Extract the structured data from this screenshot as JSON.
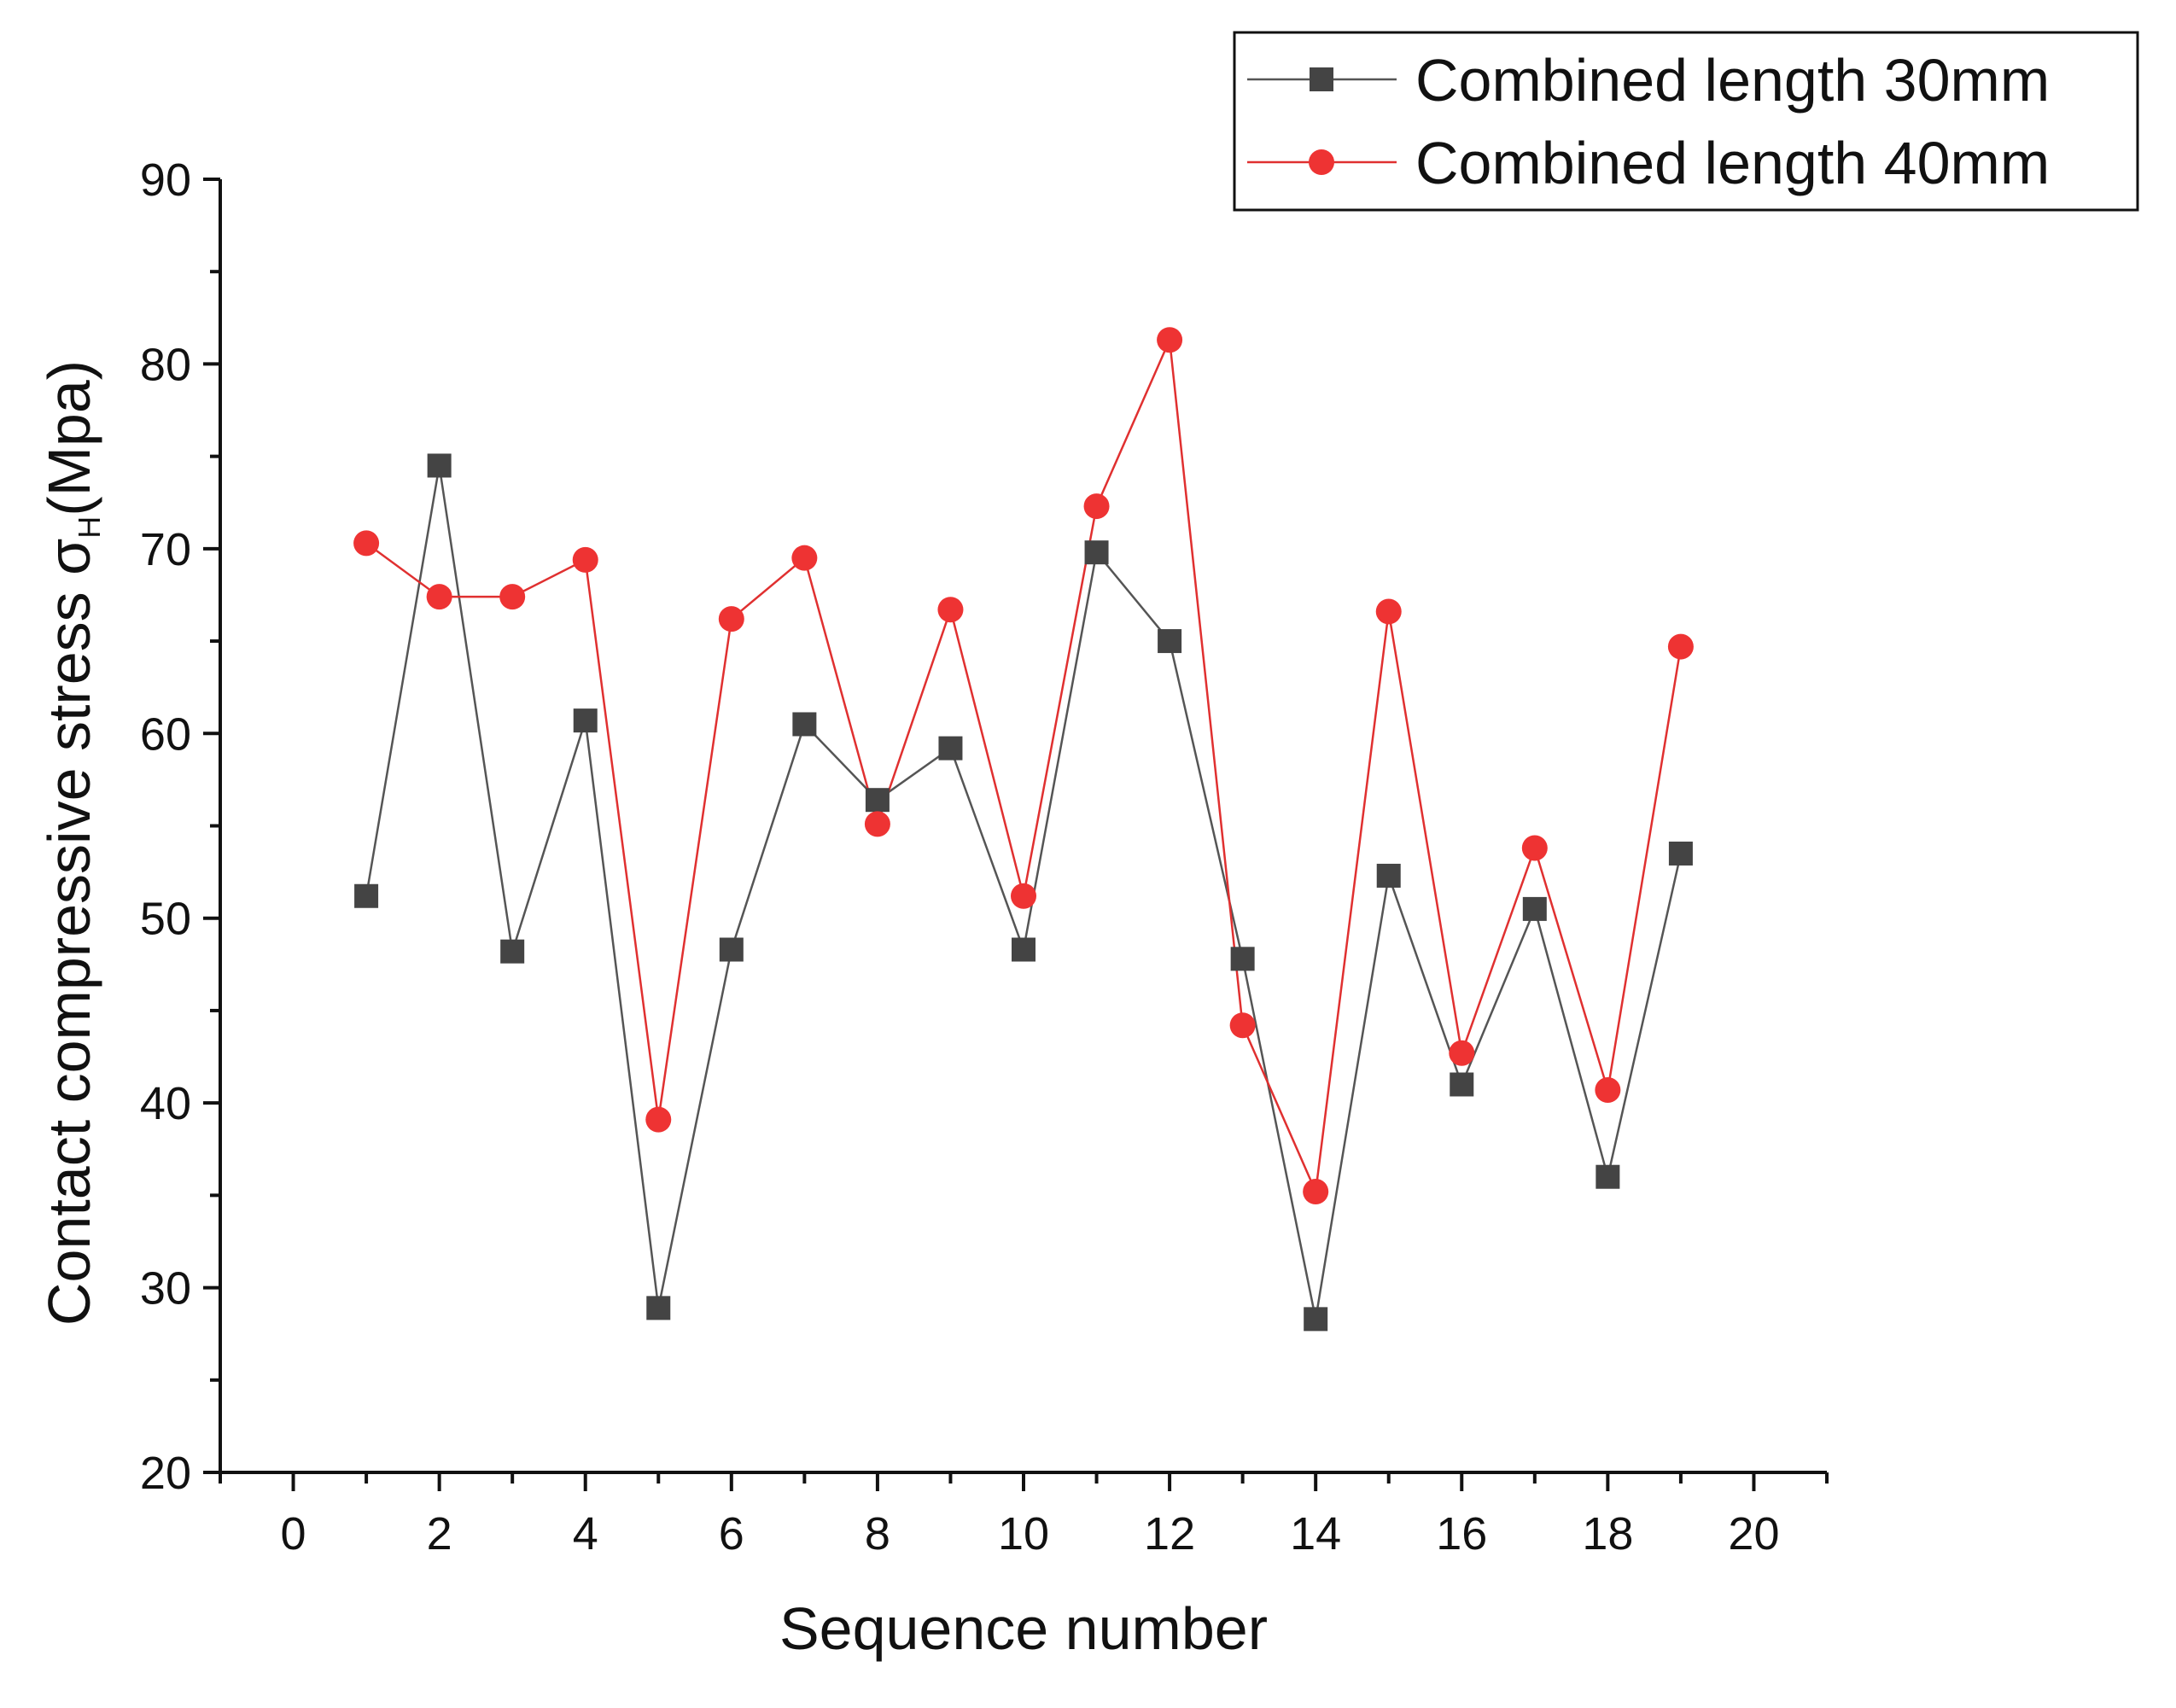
{
  "chart_data": {
    "type": "line",
    "title": "",
    "xlabel": "Sequence number",
    "ylabel": "Contact compressive stress σ",
    "ylabel_subscript": "H",
    "ylabel_unit": "(Mpa)",
    "xlim": [
      -1,
      21
    ],
    "ylim": [
      20,
      90
    ],
    "xticks": [
      0,
      2,
      4,
      6,
      8,
      10,
      12,
      14,
      16,
      18,
      20
    ],
    "yticks": [
      20,
      30,
      40,
      50,
      60,
      70,
      80,
      90
    ],
    "x_minor_step": 1,
    "y_minor_step": 5,
    "grid": false,
    "legend_position": "top-right",
    "x": [
      1,
      2,
      3,
      4,
      5,
      6,
      7,
      8,
      9,
      10,
      11,
      12,
      13,
      14,
      15,
      16,
      17,
      18,
      19
    ],
    "series": [
      {
        "name": "Combined length 30mm",
        "marker": "square",
        "color": "#444444",
        "line_color": "#555555",
        "values": [
          51.2,
          74.5,
          48.2,
          60.7,
          28.9,
          48.3,
          60.5,
          56.4,
          59.2,
          48.3,
          69.8,
          65.0,
          47.8,
          28.3,
          52.3,
          41.0,
          50.5,
          36.0,
          53.5
        ]
      },
      {
        "name": "Combined length 40mm",
        "marker": "circle",
        "color": "#ee3333",
        "line_color": "#e03030",
        "values": [
          70.3,
          67.4,
          67.4,
          69.4,
          39.1,
          66.2,
          69.5,
          55.1,
          66.7,
          51.2,
          72.3,
          81.3,
          44.2,
          35.2,
          66.6,
          42.7,
          53.8,
          40.7,
          64.7
        ]
      }
    ]
  }
}
